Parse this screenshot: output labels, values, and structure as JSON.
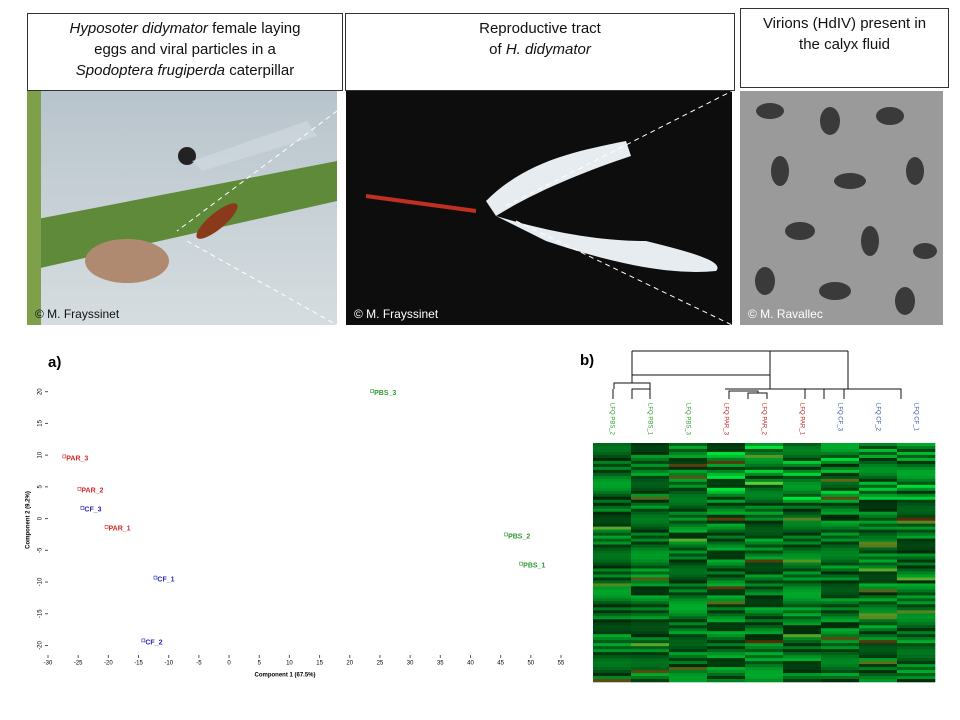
{
  "captions": [
    {
      "lines": [
        [
          "Hyposoter didymator",
          "female laying"
        ],
        [
          "eggs and viral particles in a"
        ],
        [
          "Spodoptera frugiperda",
          "caterpillar"
        ]
      ]
    },
    {
      "lines": [
        [
          "Reproductive tract"
        ],
        [
          "of",
          "H. didymator"
        ]
      ]
    },
    {
      "lines": [
        [
          "Virions (HdIV) present in"
        ],
        [
          "the calyx fluid"
        ]
      ]
    }
  ],
  "credits": [
    "© M. Frayssinet",
    "© M. Frayssinet",
    "© M. Ravallec"
  ],
  "panel_labels": [
    "a)",
    "b)"
  ],
  "chart_data": {
    "type": "scatter",
    "xlabel": "Component 1 (67.5%)",
    "ylabel": "Component 2 (9.2%)",
    "xlim": [
      -30,
      55
    ],
    "ylim": [
      -21.5,
      22
    ],
    "xticks": [
      -30,
      -25,
      -20,
      -15,
      -10,
      -5,
      0,
      5,
      10,
      15,
      20,
      25,
      30,
      35,
      40,
      45,
      50,
      55
    ],
    "yticks": [
      -20,
      -15,
      -10,
      -5,
      0,
      5,
      10,
      15,
      20
    ],
    "points": [
      {
        "label": "PBS_3",
        "x": 23.7,
        "y": 20.1,
        "color": "#2e9a2e"
      },
      {
        "label": "PAR_3",
        "x": -27.3,
        "y": 9.8,
        "color": "#d42a2a"
      },
      {
        "label": "PAR_2",
        "x": -24.8,
        "y": 4.7,
        "color": "#d42a2a"
      },
      {
        "label": "CF_3",
        "x": -24.3,
        "y": 1.7,
        "color": "#2a2ab4"
      },
      {
        "label": "PAR_1",
        "x": -20.3,
        "y": -1.3,
        "color": "#d42a2a"
      },
      {
        "label": "CF_1",
        "x": -12.2,
        "y": -9.3,
        "color": "#2a2ab4"
      },
      {
        "label": "CF_2",
        "x": -14.2,
        "y": -19.2,
        "color": "#2a2ab4"
      },
      {
        "label": "PBS_2",
        "x": 45.9,
        "y": -2.5,
        "color": "#2e9a2e"
      },
      {
        "label": "PBS_1",
        "x": 48.4,
        "y": -7.1,
        "color": "#2e9a2e"
      }
    ]
  },
  "heatmap": {
    "columns": [
      {
        "label": "LFQ PBS_2",
        "color": "#2e9a2e"
      },
      {
        "label": "LFQ PBS_1",
        "color": "#2e9a2e"
      },
      {
        "label": "LFQ PBS_3",
        "color": "#2e9a2e"
      },
      {
        "label": "LFQ PAR_3",
        "color": "#c02020"
      },
      {
        "label": "LFQ PAR_2",
        "color": "#c02020"
      },
      {
        "label": "LFQ PAR_1",
        "color": "#c02020"
      },
      {
        "label": "LFQ CF_3",
        "color": "#2a5aa0"
      },
      {
        "label": "LFQ CF_2",
        "color": "#2a5aa0"
      },
      {
        "label": "LFQ CF_1",
        "color": "#2a5aa0"
      }
    ]
  }
}
